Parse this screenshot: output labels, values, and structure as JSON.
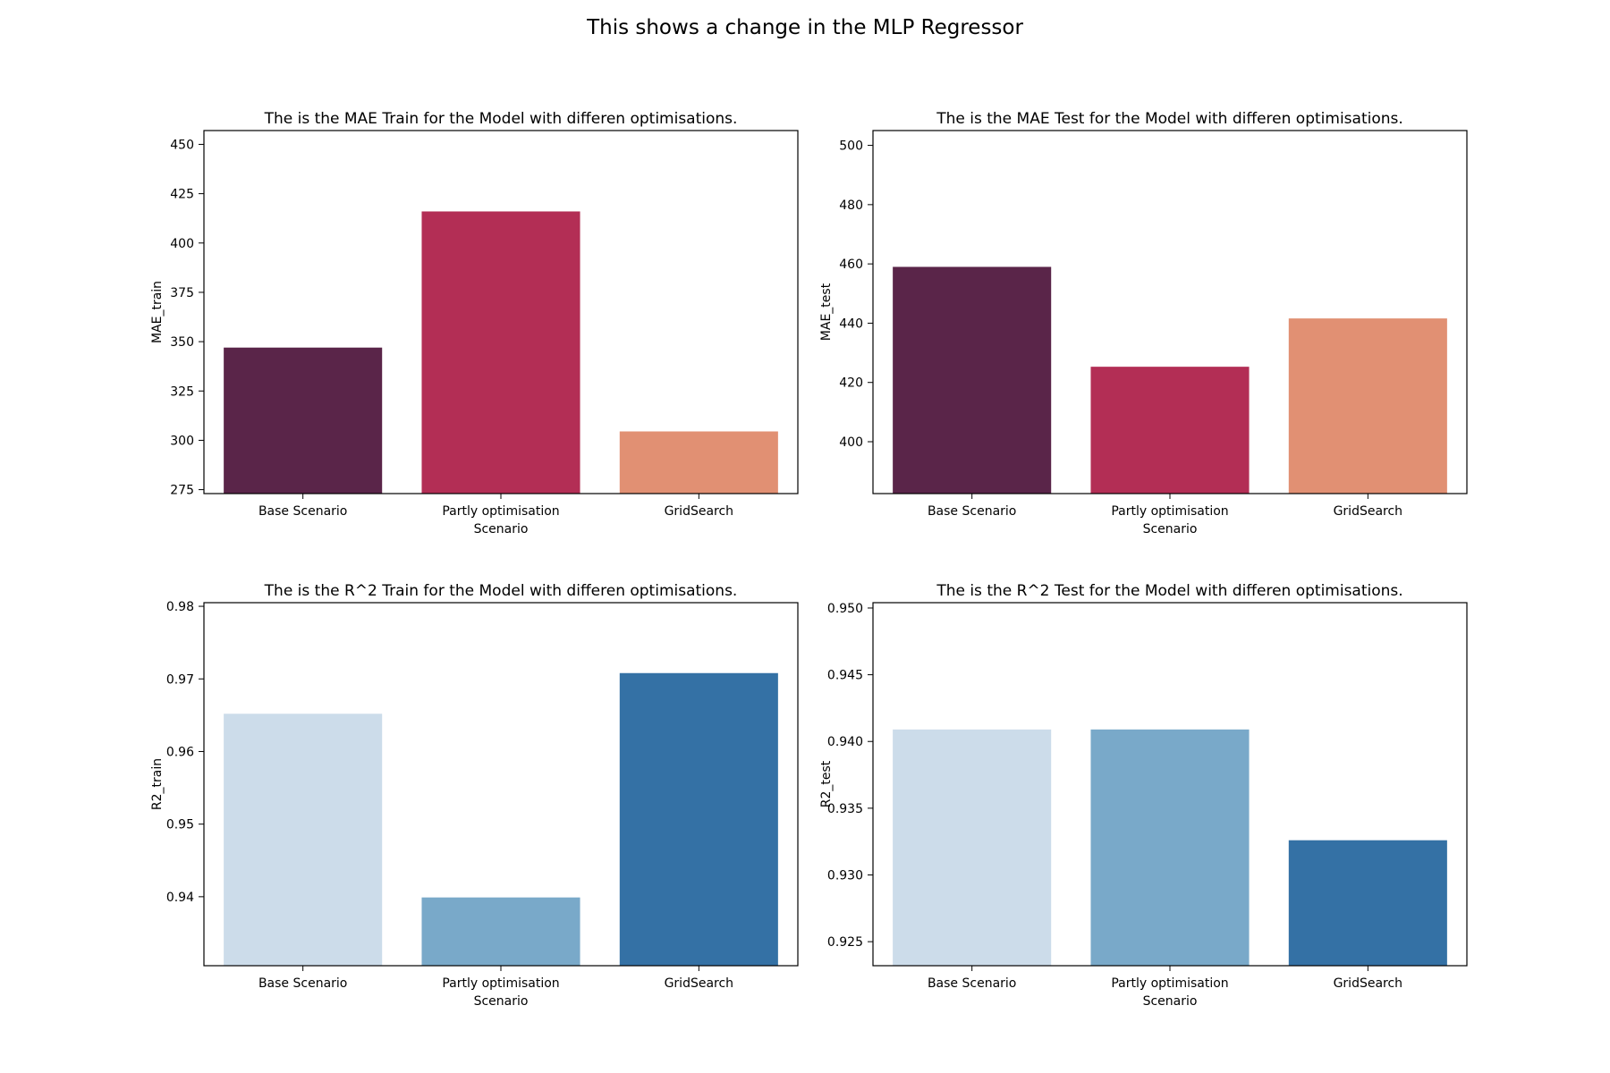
{
  "figure_title": "This shows a change in the MLP Regressor",
  "chart_data": [
    {
      "type": "bar",
      "title": "The is the MAE Train for the Model with differen optimisations.",
      "xlabel": "Scenario",
      "ylabel": "MAE_train",
      "categories": [
        "Base Scenario",
        "Partly optimisation",
        "GridSearch"
      ],
      "values": [
        347,
        416,
        304.5
      ],
      "colors": [
        "#5a2549",
        "#b32e55",
        "#e19073"
      ],
      "ylim": [
        273,
        457
      ],
      "yticks": [
        275,
        300,
        325,
        350,
        375,
        400,
        425,
        450
      ],
      "ytick_labels": [
        "275",
        "300",
        "325",
        "350",
        "375",
        "400",
        "425",
        "450"
      ],
      "grid": false
    },
    {
      "type": "bar",
      "title": "The is the MAE Test for the Model with differen optimisations.",
      "xlabel": "Scenario",
      "ylabel": "MAE_test",
      "categories": [
        "Base Scenario",
        "Partly optimisation",
        "GridSearch"
      ],
      "values": [
        459,
        425.3,
        441.6
      ],
      "colors": [
        "#5a2549",
        "#b32e55",
        "#e19073"
      ],
      "ylim": [
        382.5,
        505
      ],
      "yticks": [
        400,
        420,
        440,
        460,
        480,
        500
      ],
      "ytick_labels": [
        "400",
        "420",
        "440",
        "460",
        "480",
        "500"
      ],
      "grid": false
    },
    {
      "type": "bar",
      "title": "The is the R^2 Train for the Model with differen optimisations.",
      "xlabel": "Scenario",
      "ylabel": "R2_train",
      "categories": [
        "Base Scenario",
        "Partly optimisation",
        "GridSearch"
      ],
      "values": [
        0.9652,
        0.9399,
        0.9708
      ],
      "colors": [
        "#ccdcea",
        "#79a9c9",
        "#3471a5"
      ],
      "ylim": [
        0.9305,
        0.9805
      ],
      "yticks": [
        0.94,
        0.95,
        0.96,
        0.97,
        0.98
      ],
      "ytick_labels": [
        "0.94",
        "0.95",
        "0.96",
        "0.97",
        "0.98"
      ],
      "grid": false
    },
    {
      "type": "bar",
      "title": "The is the R^2 Test for the Model with differen optimisations.",
      "xlabel": "Scenario",
      "ylabel": "R2_test",
      "categories": [
        "Base Scenario",
        "Partly optimisation",
        "GridSearch"
      ],
      "values": [
        0.9409,
        0.9409,
        0.9326
      ],
      "colors": [
        "#ccdcea",
        "#79a9c9",
        "#3471a5"
      ],
      "ylim": [
        0.9232,
        0.9504
      ],
      "yticks": [
        0.925,
        0.93,
        0.935,
        0.94,
        0.945,
        0.95
      ],
      "ytick_labels": [
        "0.925",
        "0.930",
        "0.935",
        "0.940",
        "0.945",
        "0.950"
      ],
      "grid": false
    }
  ]
}
